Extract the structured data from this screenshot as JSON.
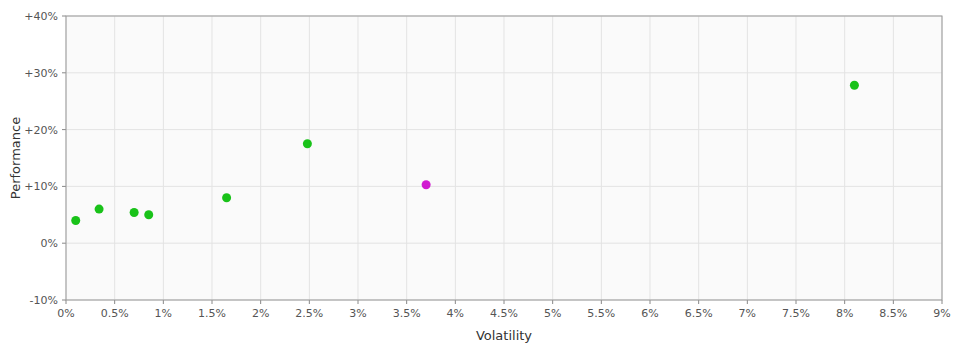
{
  "chart_data": {
    "type": "scatter",
    "x_label": "Volatility",
    "y_label": "Performance",
    "x": [
      0.001,
      0.0034,
      0.007,
      0.0085,
      0.0165,
      0.0248,
      0.037,
      0.081
    ],
    "values": [
      0.04,
      0.06,
      0.054,
      0.05,
      0.08,
      0.175,
      0.103,
      0.278
    ],
    "colors": [
      "#00bb00",
      "#00bb00",
      "#00bb00",
      "#00bb00",
      "#00bb00",
      "#00bb00",
      "#cc00cc",
      "#00bb00"
    ],
    "xlim": [
      0,
      0.09
    ],
    "ylim": [
      -0.1,
      0.4
    ],
    "xticks": [
      {
        "value": 0.0,
        "label": "0%"
      },
      {
        "value": 0.005,
        "label": "0.5%"
      },
      {
        "value": 0.01,
        "label": "1%"
      },
      {
        "value": 0.015,
        "label": "1.5%"
      },
      {
        "value": 0.02,
        "label": "2%"
      },
      {
        "value": 0.025,
        "label": "2.5%"
      },
      {
        "value": 0.03,
        "label": "3%"
      },
      {
        "value": 0.035,
        "label": "3.5%"
      },
      {
        "value": 0.04,
        "label": "4%"
      },
      {
        "value": 0.045,
        "label": "4.5%"
      },
      {
        "value": 0.05,
        "label": "5%"
      },
      {
        "value": 0.055,
        "label": "5.5%"
      },
      {
        "value": 0.06,
        "label": "6%"
      },
      {
        "value": 0.065,
        "label": "6.5%"
      },
      {
        "value": 0.07,
        "label": "7%"
      },
      {
        "value": 0.075,
        "label": "7.5%"
      },
      {
        "value": 0.08,
        "label": "8%"
      },
      {
        "value": 0.085,
        "label": "8.5%"
      },
      {
        "value": 0.09,
        "label": "9%"
      }
    ],
    "yticks": [
      {
        "value": -0.1,
        "label": "-10%"
      },
      {
        "value": 0.0,
        "label": "0%"
      },
      {
        "value": 0.1,
        "label": "+10%"
      },
      {
        "value": 0.2,
        "label": "+20%"
      },
      {
        "value": 0.3,
        "label": "+30%"
      },
      {
        "value": 0.4,
        "label": "+40%"
      }
    ],
    "grid": true
  }
}
